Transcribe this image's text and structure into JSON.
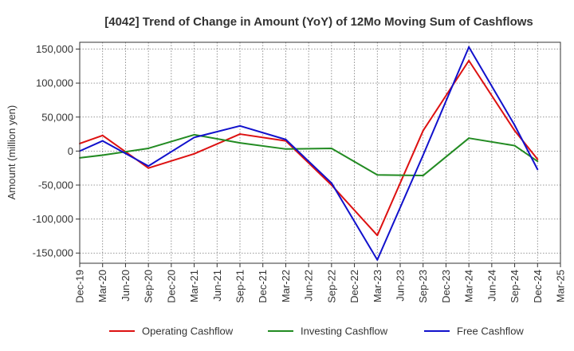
{
  "chart_data": {
    "type": "line",
    "title": "[4042]  Trend of Change in Amount (YoY) of 12Mo Moving Sum of Cashflows",
    "xlabel": "",
    "ylabel": "Amount (million yen)",
    "ylim": [
      -165000,
      160000
    ],
    "y_ticks": [
      150000,
      100000,
      50000,
      0,
      -50000,
      -100000,
      -150000
    ],
    "y_tick_labels": [
      "150,000",
      "100,000",
      "50,000",
      "0",
      "-50,000",
      "-100,000",
      "-150,000"
    ],
    "categories": [
      "Dec-19",
      "Mar-20",
      "Jun-20",
      "Sep-20",
      "Dec-20",
      "Mar-21",
      "Jun-21",
      "Sep-21",
      "Dec-21",
      "Mar-22",
      "Jun-22",
      "Sep-22",
      "Dec-22",
      "Mar-23",
      "Jun-23",
      "Sep-23",
      "Dec-23",
      "Mar-24",
      "Jun-24",
      "Sep-24",
      "Dec-24",
      "Mar-25"
    ],
    "grid": true,
    "legend_position": "bottom",
    "series": [
      {
        "name": "Operating Cashflow",
        "color": "#dd1111",
        "values": [
          11000,
          23000,
          null,
          -25000,
          null,
          -4000,
          null,
          25000,
          null,
          15000,
          null,
          -50000,
          null,
          -124000,
          null,
          30000,
          null,
          133000,
          null,
          30000,
          -12000,
          null
        ]
      },
      {
        "name": "Investing Cashflow",
        "color": "#228b22",
        "values": [
          -10000,
          -6000,
          null,
          4000,
          null,
          24000,
          null,
          12000,
          null,
          3000,
          null,
          4000,
          null,
          -35000,
          null,
          -36000,
          null,
          19000,
          null,
          8000,
          -15000,
          null
        ]
      },
      {
        "name": "Free Cashflow",
        "color": "#1111cc",
        "values": [
          0,
          15000,
          null,
          -22000,
          null,
          20000,
          null,
          37000,
          null,
          17000,
          null,
          -47000,
          null,
          -160000,
          null,
          -6000,
          null,
          153000,
          null,
          38000,
          -27000,
          null
        ]
      }
    ]
  }
}
